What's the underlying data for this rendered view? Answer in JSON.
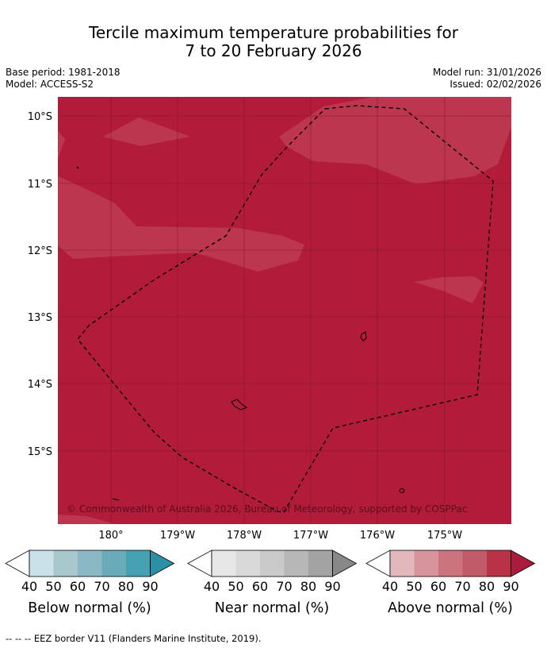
{
  "header": {
    "title_line1": "Tercile maximum temperature probabilities for",
    "title_line2": "7 to 20 February 2026",
    "base_period": "Base period: 1981-2018",
    "model": "Model: ACCESS-S2",
    "model_run": "Model run: 31/01/2026",
    "issued": "Issued: 02/02/2026"
  },
  "map": {
    "lat_labels": [
      "10°S",
      "11°S",
      "12°S",
      "13°S",
      "14°S",
      "15°S"
    ],
    "lon_labels": [
      "180°",
      "179°W",
      "178°W",
      "177°W",
      "176°W",
      "175°W"
    ],
    "copyright": "© Commonwealth of Australia 2026, Bureau of Meteorology, supported by COSPPac",
    "colors": {
      "base": "#b21c3a",
      "lighter": "#bc3650",
      "grid": "#7a1428",
      "eez": "#000000"
    }
  },
  "legends": [
    {
      "title": "Below normal (%)",
      "ticks": [
        "40",
        "50",
        "60",
        "70",
        "80",
        "90"
      ],
      "colors": [
        "#ffffff",
        "#c9e1e9",
        "#a7c7cd",
        "#8ab9c5",
        "#6aabb9",
        "#44a0b2",
        "#2b8fa6"
      ]
    },
    {
      "title": "Near normal (%)",
      "ticks": [
        "40",
        "50",
        "60",
        "70",
        "80",
        "90"
      ],
      "colors": [
        "#ffffff",
        "#e7e7e7",
        "#d9d9d9",
        "#cacaca",
        "#b7b7b7",
        "#a3a3a3",
        "#888888"
      ]
    },
    {
      "title": "Above normal (%)",
      "ticks": [
        "40",
        "50",
        "60",
        "70",
        "80",
        "90"
      ],
      "colors": [
        "#ffffff",
        "#e2b8bd",
        "#d8949c",
        "#cb747f",
        "#c15a69",
        "#b93248",
        "#a91c3c"
      ]
    }
  ],
  "footer": "--  --  -- EEZ border V11 (Flanders Marine Institute, 2019)."
}
